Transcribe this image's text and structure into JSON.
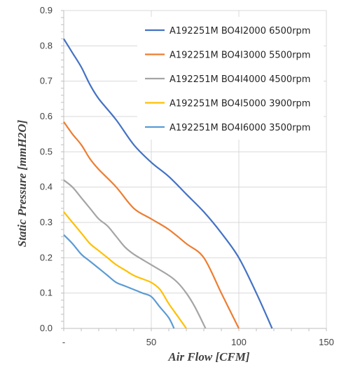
{
  "chart_data": {
    "type": "line",
    "xlabel": "Air Flow [CFM]",
    "ylabel": "Static Pressure [mmH2O]",
    "xlim": [
      0,
      150
    ],
    "ylim": [
      0,
      0.9
    ],
    "xticks": [
      0,
      50,
      100,
      150
    ],
    "xtick_labels": [
      "-",
      "50",
      "100",
      "150"
    ],
    "yticks": [
      0.0,
      0.1,
      0.2,
      0.3,
      0.4,
      0.5,
      0.6,
      0.7,
      0.8,
      0.9
    ],
    "ytick_labels": [
      "0.0",
      "0.1",
      "0.2",
      "0.3",
      "0.4",
      "0.5",
      "0.6",
      "0.7",
      "0.8",
      "0.9"
    ],
    "grid": "major",
    "legend_position": "top-right",
    "series": [
      {
        "name": "A192251M BO4I2000 6500rpm",
        "color": "#4472C4",
        "points": [
          [
            0,
            0.82
          ],
          [
            5,
            0.78
          ],
          [
            10,
            0.74
          ],
          [
            15,
            0.69
          ],
          [
            20,
            0.65
          ],
          [
            30,
            0.59
          ],
          [
            40,
            0.52
          ],
          [
            50,
            0.47
          ],
          [
            60,
            0.43
          ],
          [
            70,
            0.38
          ],
          [
            80,
            0.33
          ],
          [
            90,
            0.27
          ],
          [
            100,
            0.2
          ],
          [
            110,
            0.1
          ],
          [
            119,
            0.0
          ]
        ]
      },
      {
        "name": "A192251M BO4I3000 5500rpm",
        "color": "#ED7D31",
        "points": [
          [
            0,
            0.585
          ],
          [
            5,
            0.55
          ],
          [
            10,
            0.52
          ],
          [
            15,
            0.48
          ],
          [
            20,
            0.45
          ],
          [
            30,
            0.4
          ],
          [
            40,
            0.34
          ],
          [
            50,
            0.31
          ],
          [
            60,
            0.28
          ],
          [
            70,
            0.24
          ],
          [
            80,
            0.2
          ],
          [
            90,
            0.1
          ],
          [
            100,
            0.0
          ]
        ]
      },
      {
        "name": "A192251M BO4I4000 4500rpm",
        "color": "#A5A5A5",
        "points": [
          [
            0,
            0.42
          ],
          [
            5,
            0.4
          ],
          [
            10,
            0.37
          ],
          [
            15,
            0.34
          ],
          [
            20,
            0.31
          ],
          [
            25,
            0.29
          ],
          [
            30,
            0.26
          ],
          [
            35,
            0.23
          ],
          [
            40,
            0.21
          ],
          [
            50,
            0.18
          ],
          [
            60,
            0.15
          ],
          [
            65,
            0.13
          ],
          [
            70,
            0.1
          ],
          [
            75,
            0.06
          ],
          [
            81,
            0.0
          ]
        ]
      },
      {
        "name": "A192251M BO4I5000 3900rpm",
        "color": "#FFC000",
        "points": [
          [
            0,
            0.33
          ],
          [
            5,
            0.3
          ],
          [
            10,
            0.27
          ],
          [
            15,
            0.24
          ],
          [
            20,
            0.22
          ],
          [
            25,
            0.2
          ],
          [
            30,
            0.18
          ],
          [
            35,
            0.165
          ],
          [
            40,
            0.15
          ],
          [
            45,
            0.14
          ],
          [
            50,
            0.13
          ],
          [
            55,
            0.11
          ],
          [
            60,
            0.07
          ],
          [
            65,
            0.035
          ],
          [
            70,
            0.0
          ]
        ]
      },
      {
        "name": "A192251M BO4I6000 3500rpm",
        "color": "#5B9BD5",
        "points": [
          [
            0,
            0.265
          ],
          [
            5,
            0.24
          ],
          [
            10,
            0.21
          ],
          [
            15,
            0.19
          ],
          [
            20,
            0.17
          ],
          [
            25,
            0.15
          ],
          [
            30,
            0.13
          ],
          [
            35,
            0.12
          ],
          [
            40,
            0.11
          ],
          [
            45,
            0.1
          ],
          [
            50,
            0.09
          ],
          [
            55,
            0.06
          ],
          [
            60,
            0.03
          ],
          [
            63,
            0.0
          ]
        ]
      }
    ]
  }
}
